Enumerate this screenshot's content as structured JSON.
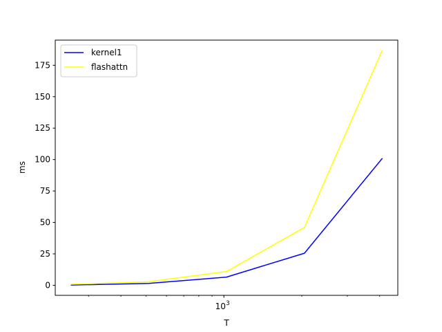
{
  "chart_data": {
    "type": "line",
    "title": "",
    "xlabel": "T",
    "ylabel": "ms",
    "x_scale": "log",
    "x": [
      256,
      512,
      1024,
      2048,
      4096
    ],
    "xlim": [
      223,
      4700
    ],
    "ylim": [
      -8,
      195
    ],
    "y_ticks": [
      0,
      25,
      50,
      75,
      100,
      125,
      150,
      175
    ],
    "x_ticks_major": [
      1000
    ],
    "x_tick_labels": [
      "10^3"
    ],
    "x_ticks_minor": [
      300,
      400,
      500,
      600,
      700,
      800,
      900,
      2000,
      3000,
      4000
    ],
    "grid": false,
    "legend_position": "top-left",
    "series": [
      {
        "name": "kernel1",
        "color": "#0000ff",
        "values": [
          0.2,
          1.5,
          6.5,
          25.5,
          101
        ]
      },
      {
        "name": "flashattn",
        "color": "#ffff00",
        "values": [
          0.8,
          2.8,
          11,
          46,
          187
        ]
      }
    ]
  }
}
